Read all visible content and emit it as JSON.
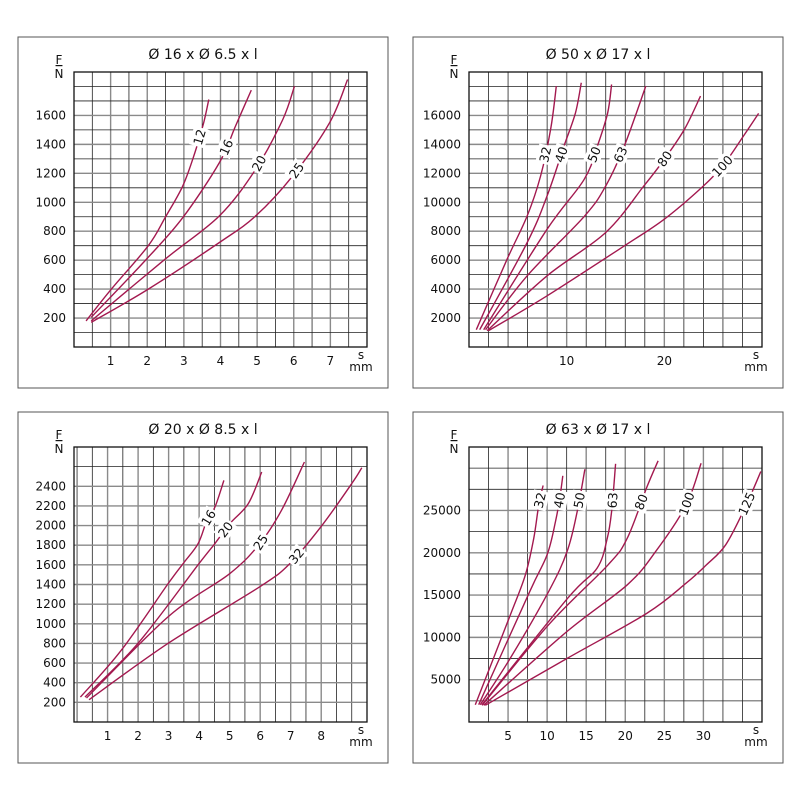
{
  "colors": {
    "curve": "#a3194f",
    "grid": "#222222",
    "frame": "#111111"
  },
  "chart_data": [
    {
      "type": "line",
      "title": "Ø 16 x Ø 6.5 x l",
      "xlabel": "s",
      "xunit": "mm",
      "ylabel": "F",
      "yunit": "N",
      "xlim": [
        0,
        8
      ],
      "ylim": [
        0,
        1900
      ],
      "xgrid_step": 0.5,
      "ygrid_step": 100,
      "grid": true,
      "xticks": [
        1,
        2,
        3,
        4,
        5,
        6,
        7
      ],
      "yticks": [
        200,
        400,
        600,
        800,
        1000,
        1200,
        1400,
        1600
      ],
      "series": [
        {
          "name": "12",
          "points": [
            [
              0.33,
              180
            ],
            [
              1.02,
              400
            ],
            [
              2.03,
              700
            ],
            [
              2.49,
              895
            ],
            [
              2.97,
              1113
            ],
            [
              3.3,
              1343
            ],
            [
              3.54,
              1550
            ],
            [
              3.68,
              1710
            ]
          ]
        },
        {
          "name": "16",
          "points": [
            [
              0.47,
              205
            ],
            [
              1.98,
              607
            ],
            [
              2.97,
              894
            ],
            [
              3.97,
              1274
            ],
            [
              4.41,
              1526
            ],
            [
              4.84,
              1775
            ]
          ]
        },
        {
          "name": "20",
          "points": [
            [
              0.47,
              180
            ],
            [
              2.49,
              607
            ],
            [
              3.97,
              906
            ],
            [
              4.96,
              1228
            ],
            [
              5.7,
              1572
            ],
            [
              6.02,
              1802
            ]
          ]
        },
        {
          "name": "25",
          "points": [
            [
              0.47,
              170
            ],
            [
              2.03,
              400
            ],
            [
              3.97,
              722
            ],
            [
              4.96,
              906
            ],
            [
              5.97,
              1182
            ],
            [
              6.98,
              1550
            ],
            [
              7.47,
              1848
            ]
          ]
        }
      ]
    },
    {
      "type": "line",
      "title": "Ø 50 x Ø 17 x l",
      "xlabel": "s",
      "xunit": "mm",
      "ylabel": "F",
      "yunit": "N",
      "xlim": [
        0,
        30
      ],
      "ylim": [
        0,
        19000
      ],
      "xgrid_step": 2,
      "ygrid_step": 1000,
      "grid": true,
      "xticks": [
        10,
        20
      ],
      "yticks": [
        2000,
        4000,
        6000,
        8000,
        10000,
        12000,
        14000,
        16000
      ],
      "series": [
        {
          "name": "32",
          "points": [
            [
              0.75,
              1195
            ],
            [
              3.9,
              6069
            ],
            [
              5.96,
              9057
            ],
            [
              7.33,
              11816
            ],
            [
              8.36,
              15034
            ],
            [
              8.94,
              18023
            ]
          ]
        },
        {
          "name": "40",
          "points": [
            [
              1.1,
              1195
            ],
            [
              5.96,
              7218
            ],
            [
              8.0,
              10437
            ],
            [
              9.73,
              13885
            ],
            [
              10.9,
              16184
            ],
            [
              11.5,
              18253
            ]
          ]
        },
        {
          "name": "50",
          "points": [
            [
              1.5,
              1195
            ],
            [
              8.0,
              8138
            ],
            [
              11.8,
              11586
            ],
            [
              13.15,
              13885
            ],
            [
              14.2,
              16184
            ],
            [
              14.6,
              18138
            ]
          ]
        },
        {
          "name": "63",
          "points": [
            [
              1.7,
              1195
            ],
            [
              5.96,
              4920
            ],
            [
              11.85,
              9057
            ],
            [
              14.0,
              11126
            ],
            [
              15.9,
              13885
            ],
            [
              18.1,
              18023
            ]
          ]
        },
        {
          "name": "80",
          "points": [
            [
              1.85,
              1126
            ],
            [
              8.0,
              4920
            ],
            [
              14.0,
              7908
            ],
            [
              17.9,
              11126
            ],
            [
              20.0,
              12966
            ],
            [
              22.05,
              15034
            ],
            [
              23.7,
              17333
            ]
          ]
        },
        {
          "name": "100",
          "points": [
            [
              2.0,
              1126
            ],
            [
              8.0,
              3540
            ],
            [
              15.9,
              6988
            ],
            [
              20.0,
              8828
            ],
            [
              24.0,
              11126
            ],
            [
              26.1,
              12620
            ],
            [
              28.1,
              14574
            ],
            [
              29.65,
              16138
            ]
          ]
        }
      ]
    },
    {
      "type": "line",
      "title": "Ø 20 x Ø 8.5 x l",
      "xlabel": "s",
      "xunit": "mm",
      "ylabel": "F",
      "yunit": "N",
      "xlim": [
        -0.1,
        9.5
      ],
      "ylim": [
        0,
        2800
      ],
      "xgrid_step": 0.5,
      "ygrid_step": 200,
      "grid": true,
      "xticks": [
        1,
        2,
        3,
        4,
        5,
        6,
        7,
        8
      ],
      "yticks": [
        200,
        400,
        600,
        800,
        1000,
        1200,
        1400,
        1600,
        1800,
        2000,
        2200,
        2400
      ],
      "series": [
        {
          "name": "16",
          "points": [
            [
              0.11,
              254
            ],
            [
              1.46,
              735
            ],
            [
              2.99,
              1411
            ],
            [
              3.48,
              1615
            ],
            [
              3.97,
              1818
            ],
            [
              4.25,
              2050
            ],
            [
              4.52,
              2190
            ],
            [
              4.81,
              2460
            ]
          ]
        },
        {
          "name": "20",
          "points": [
            [
              0.26,
              254
            ],
            [
              2.0,
              802
            ],
            [
              4.0,
              1615
            ],
            [
              4.52,
              1818
            ],
            [
              5.01,
              2021
            ],
            [
              5.61,
              2224
            ],
            [
              6.05,
              2545
            ]
          ]
        },
        {
          "name": "25",
          "points": [
            [
              0.31,
              244
            ],
            [
              2.99,
              1073
            ],
            [
              5.01,
              1513
            ],
            [
              5.99,
              1818
            ],
            [
              6.7,
              2156
            ],
            [
              7.45,
              2647
            ]
          ]
        },
        {
          "name": "32",
          "points": [
            [
              0.39,
              227
            ],
            [
              2.99,
              802
            ],
            [
              5.99,
              1378
            ],
            [
              6.98,
              1615
            ],
            [
              7.99,
              1987
            ],
            [
              9.0,
              2427
            ],
            [
              9.33,
              2589
            ]
          ]
        }
      ]
    },
    {
      "type": "line",
      "title": "Ø 63 x Ø 17 x l",
      "xlabel": "s",
      "xunit": "mm",
      "ylabel": "F",
      "yunit": "N",
      "xlim": [
        0,
        37.5
      ],
      "ylim": [
        0,
        32500
      ],
      "xgrid_step": 2.5,
      "ygrid_step": 2500,
      "grid": true,
      "xticks": [
        5,
        10,
        15,
        20,
        25,
        30
      ],
      "yticks": [
        5000,
        10000,
        15000,
        20000,
        25000
      ],
      "series": [
        {
          "name": "32",
          "points": [
            [
              0.81,
              2047
            ],
            [
              5.3,
              12677
            ],
            [
              7.22,
              17402
            ],
            [
              8.29,
              21732
            ],
            [
              8.93,
              25669
            ],
            [
              9.49,
              27953
            ]
          ]
        },
        {
          "name": "40",
          "points": [
            [
              1.24,
              2047
            ],
            [
              7.78,
              15433
            ],
            [
              10.0,
              19764
            ],
            [
              11.07,
              23701
            ],
            [
              11.62,
              26457
            ],
            [
              12.0,
              29094
            ]
          ]
        },
        {
          "name": "50",
          "points": [
            [
              1.45,
              2047
            ],
            [
              5.3,
              7559
            ],
            [
              10.2,
              15433
            ],
            [
              12.56,
              20157
            ],
            [
              13.85,
              24882
            ],
            [
              14.83,
              29882
            ]
          ]
        },
        {
          "name": "63",
          "points": [
            [
              1.67,
              2047
            ],
            [
              12.65,
              14646
            ],
            [
              16.4,
              18189
            ],
            [
              17.7,
              21732
            ],
            [
              18.25,
              24882
            ],
            [
              18.76,
              30512
            ]
          ]
        },
        {
          "name": "80",
          "points": [
            [
              1.67,
              1969
            ],
            [
              10.2,
              11496
            ],
            [
              17.8,
              18583
            ],
            [
              20.26,
              21732
            ],
            [
              22.8,
              27835
            ],
            [
              24.2,
              30866
            ]
          ]
        },
        {
          "name": "100",
          "points": [
            [
              1.88,
              1969
            ],
            [
              12.56,
              10709
            ],
            [
              20.26,
              16220
            ],
            [
              23.9,
              20157
            ],
            [
              27.8,
              25669
            ],
            [
              29.7,
              30590
            ]
          ]
        },
        {
          "name": "125",
          "points": [
            [
              2.09,
              1969
            ],
            [
              12.65,
              7559
            ],
            [
              22.8,
              12874
            ],
            [
              27.8,
              16417
            ],
            [
              30.4,
              18583
            ],
            [
              32.86,
              20945
            ],
            [
              35.3,
              25276
            ],
            [
              37.35,
              29606
            ]
          ]
        }
      ]
    }
  ]
}
